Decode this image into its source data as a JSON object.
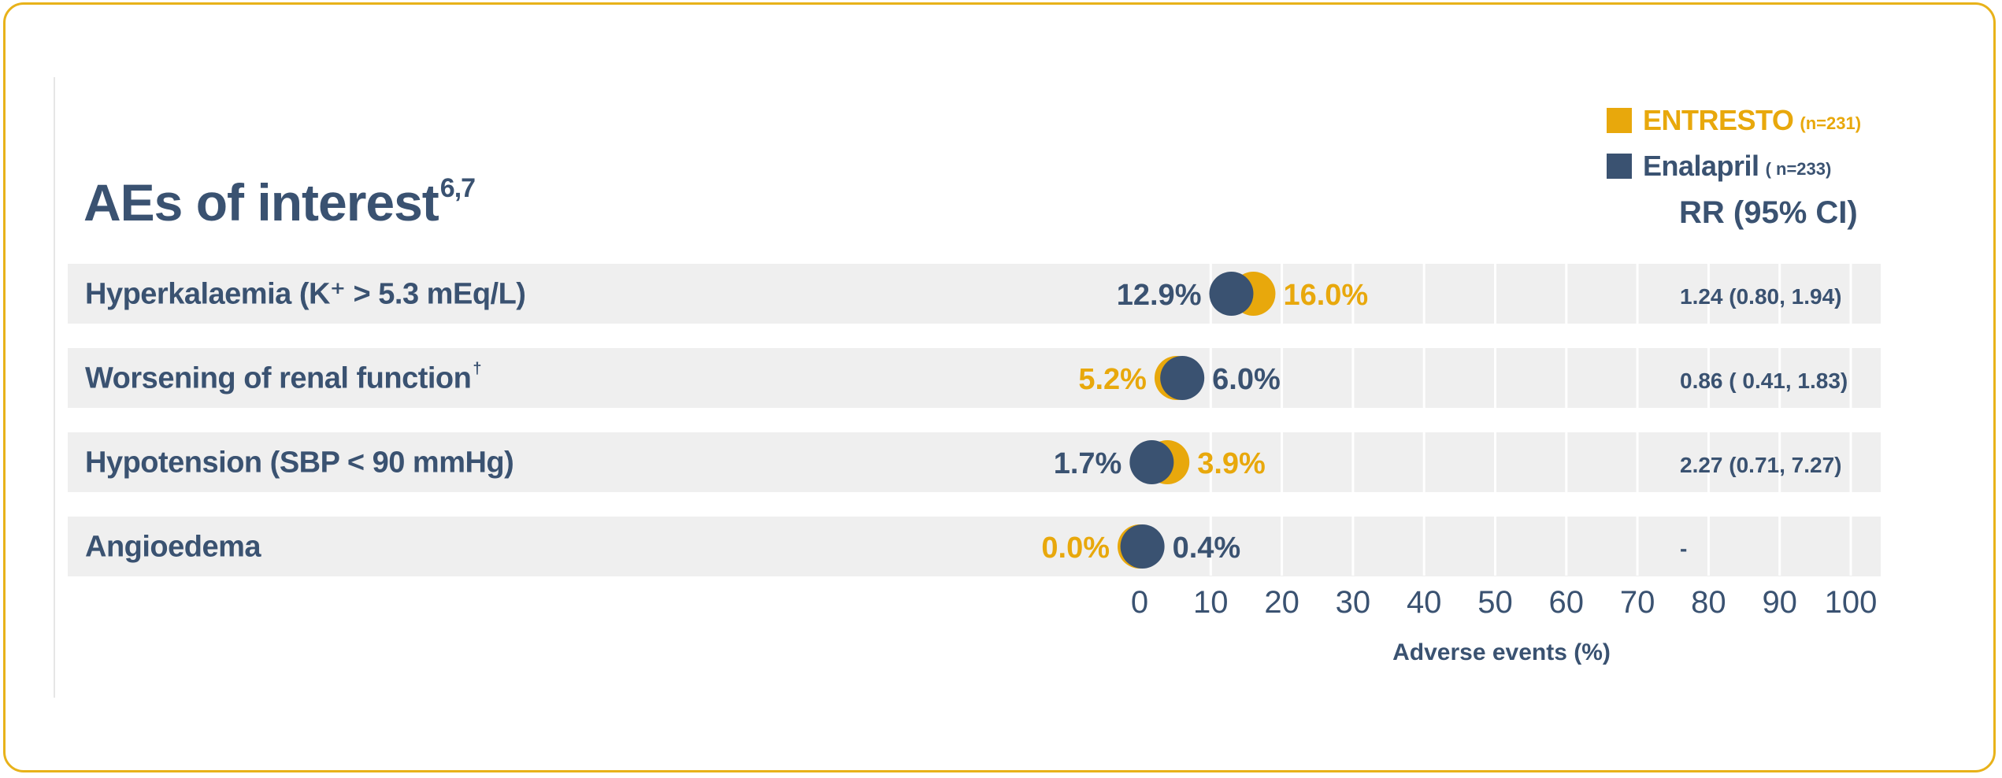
{
  "chart_data": {
    "type": "scatter",
    "title": "AEs of interest",
    "title_superscript": "6,7",
    "xlabel": "Adverse events (%)",
    "ylabel": "",
    "xlim": [
      0,
      100
    ],
    "x_ticks": [
      "0",
      "10",
      "20",
      "30",
      "40",
      "50",
      "60",
      "70",
      "80",
      "90",
      "100"
    ],
    "grid": true,
    "legend_position": "top-right",
    "series": [
      {
        "name": "ENTRESTO",
        "n_label": "(n=231)",
        "color": "#e8a80c",
        "values": [
          16.0,
          5.2,
          3.9,
          0.0
        ],
        "labels": [
          "16.0%",
          "5.2%",
          "3.9%",
          "0.0%"
        ]
      },
      {
        "name": "Enalapril",
        "n_label": "( n=233)",
        "color": "#3a5271",
        "values": [
          12.9,
          6.0,
          1.7,
          0.4
        ],
        "labels": [
          "12.9%",
          "6.0%",
          "1.7%",
          "0.4%"
        ]
      }
    ],
    "categories": [
      {
        "label": "Hyperkalaemia (K⁺ > 5.3 mEq/L)",
        "superscript": "",
        "rr": "1.24 (0.80, 1.94)"
      },
      {
        "label": "Worsening of renal function",
        "superscript": "†",
        "rr": "0.86 ( 0.41, 1.83)"
      },
      {
        "label": "Hypotension (SBP < 90 mmHg)",
        "superscript": "",
        "rr": "2.27 (0.71, 7.27)"
      },
      {
        "label": "Angioedema",
        "superscript": "",
        "rr": "-"
      }
    ],
    "rr_header": "RR (95% CI)"
  }
}
